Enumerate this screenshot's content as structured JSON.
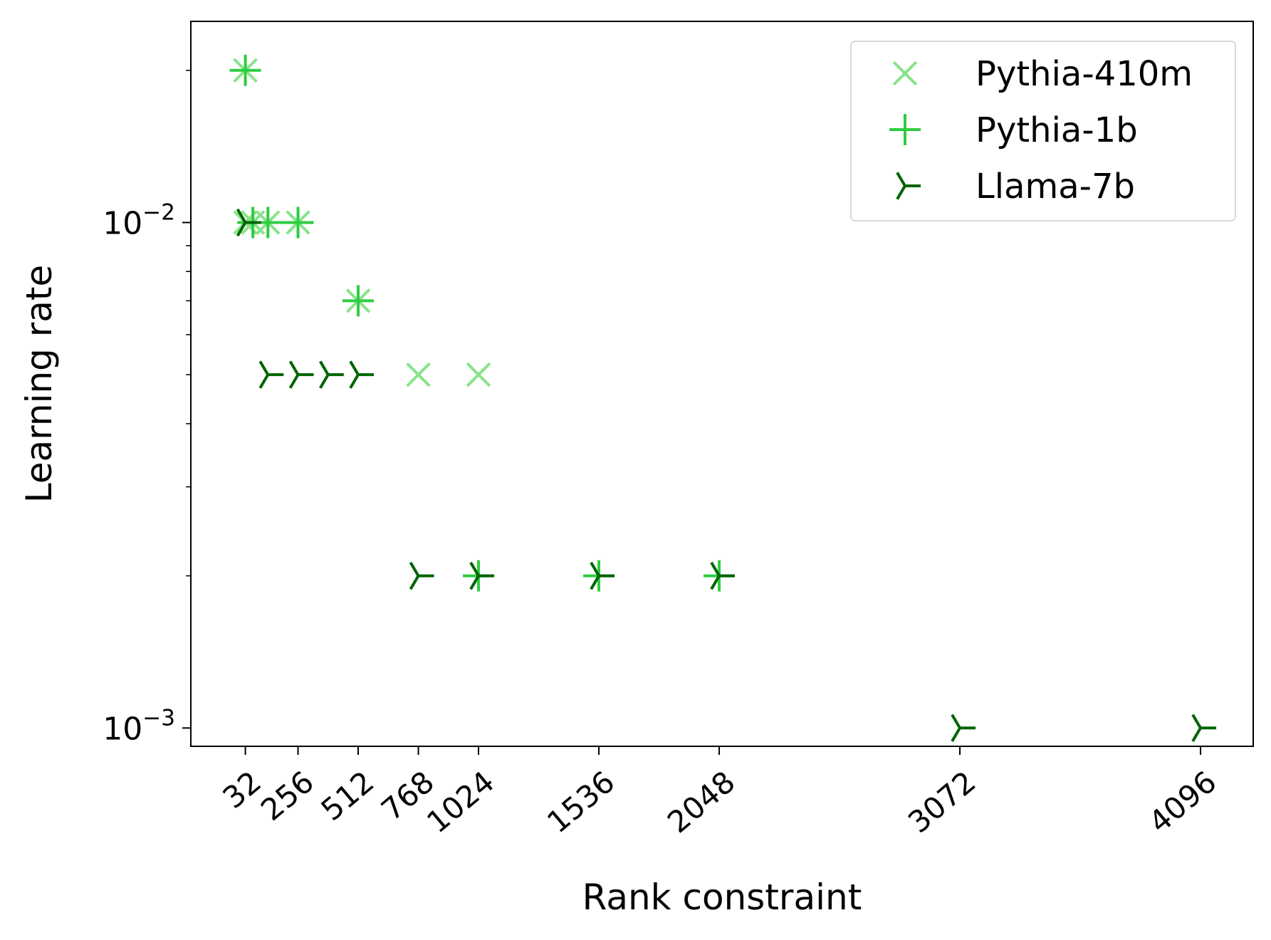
{
  "chart_data": {
    "type": "scatter",
    "xlabel": "Rank constraint",
    "ylabel": "Learning rate",
    "yscale": "log",
    "xlim": [
      -200,
      4320
    ],
    "ylim": [
      0.00092,
      0.025
    ],
    "x_ticks": [
      32,
      256,
      512,
      768,
      1024,
      1536,
      2048,
      3072,
      4096
    ],
    "x_tick_labels": [
      "32",
      "256",
      "512",
      "768",
      "1024",
      "1536",
      "2048",
      "3072",
      "4096"
    ],
    "y_major_ticks": [
      0.01,
      0.001
    ],
    "y_tick_labels": [
      {
        "base": "10",
        "exp": "−2"
      },
      {
        "base": "10",
        "exp": "−3"
      }
    ],
    "grid": false,
    "legend_position": "top-right",
    "series": [
      {
        "name": "Pythia-410m",
        "marker": "x",
        "color": "#88e488",
        "points": [
          {
            "x": 32,
            "y": 0.02
          },
          {
            "x": 32,
            "y": 0.01
          },
          {
            "x": 64,
            "y": 0.01
          },
          {
            "x": 128,
            "y": 0.01
          },
          {
            "x": 256,
            "y": 0.01
          },
          {
            "x": 512,
            "y": 0.007
          },
          {
            "x": 768,
            "y": 0.005
          },
          {
            "x": 1024,
            "y": 0.005
          }
        ]
      },
      {
        "name": "Pythia-1b",
        "marker": "+",
        "color": "#2ecc40",
        "points": [
          {
            "x": 32,
            "y": 0.02
          },
          {
            "x": 64,
            "y": 0.01
          },
          {
            "x": 128,
            "y": 0.01
          },
          {
            "x": 256,
            "y": 0.01
          },
          {
            "x": 512,
            "y": 0.007
          },
          {
            "x": 1024,
            "y": 0.002
          },
          {
            "x": 1536,
            "y": 0.002
          },
          {
            "x": 2048,
            "y": 0.002
          }
        ]
      },
      {
        "name": "Llama-7b",
        "marker": "tri",
        "color": "#006400",
        "points": [
          {
            "x": 32,
            "y": 0.01
          },
          {
            "x": 128,
            "y": 0.005
          },
          {
            "x": 256,
            "y": 0.005
          },
          {
            "x": 384,
            "y": 0.005
          },
          {
            "x": 512,
            "y": 0.005
          },
          {
            "x": 768,
            "y": 0.002
          },
          {
            "x": 1024,
            "y": 0.002
          },
          {
            "x": 1536,
            "y": 0.002
          },
          {
            "x": 2048,
            "y": 0.002
          },
          {
            "x": 3072,
            "y": 0.001
          },
          {
            "x": 4096,
            "y": 0.001
          }
        ]
      }
    ]
  }
}
